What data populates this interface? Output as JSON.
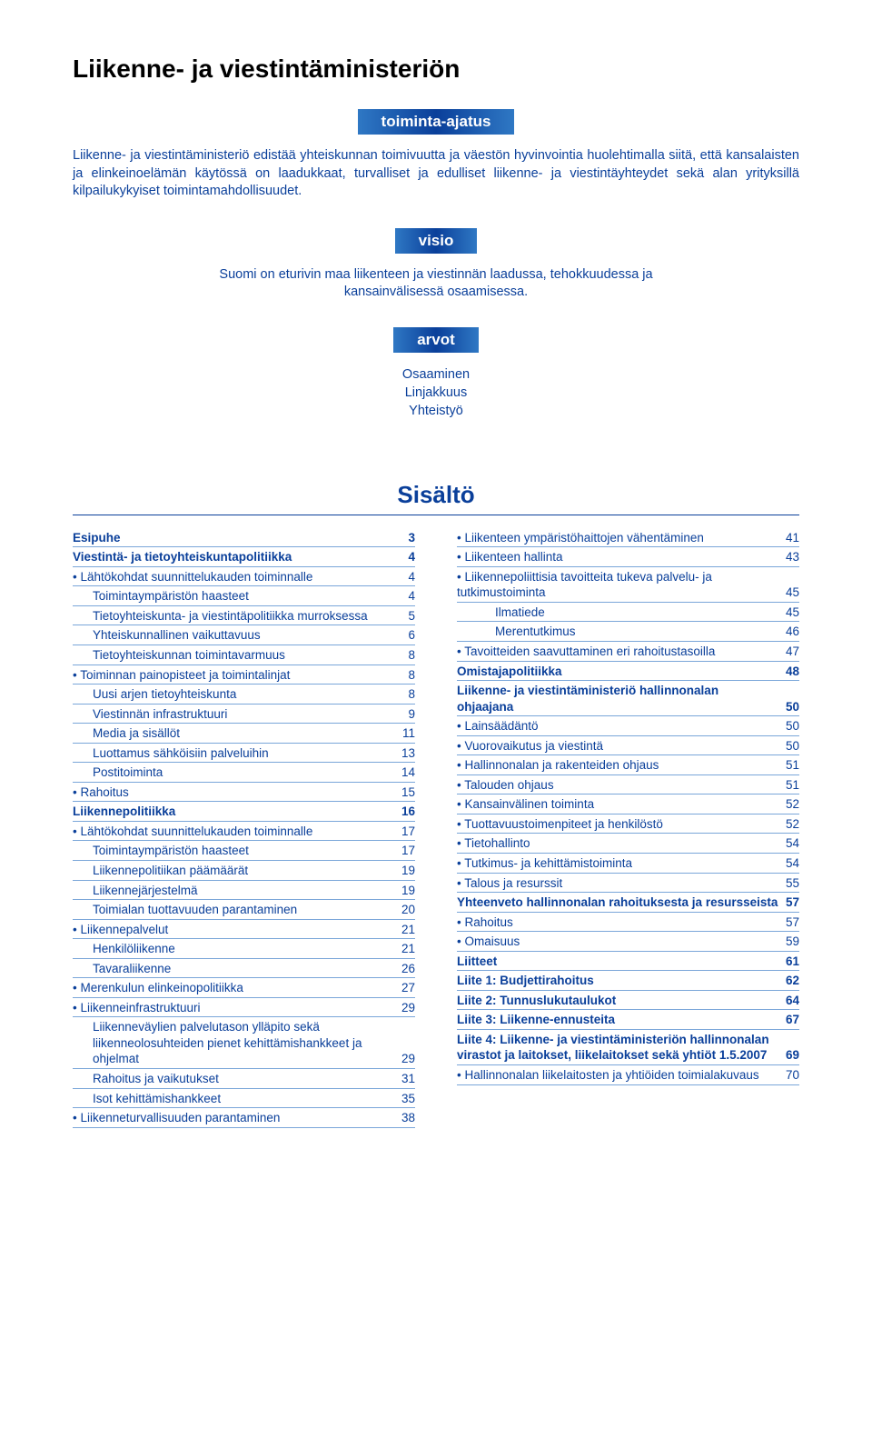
{
  "colors": {
    "accent": "#0a3f9a",
    "pill_gradient_edge": "#2f78c4",
    "pill_gradient_mid": "#0a3f9a",
    "rule": "#7aa6d9",
    "background": "#ffffff"
  },
  "typography": {
    "body_font": "Arial, Helvetica, sans-serif",
    "title_fontsize_pt": 21,
    "body_fontsize_pt": 11,
    "toc_fontsize_pt": 10,
    "pill_fontsize_pt": 13
  },
  "header": {
    "title": "Liikenne- ja viestintäministeriön"
  },
  "sections": {
    "toiminta_ajatus": {
      "label": "toiminta-ajatus",
      "text": "Liikenne- ja viestintäministeriö edistää yhteiskunnan toimivuutta ja väestön hyvinvointia huolehtimalla siitä, että kansalaisten ja elinkeinoelämän käytössä on laadukkaat, turvalliset ja edulliset liikenne- ja viestintäyhteydet sekä alan yrityksillä kilpailukykyiset toimintamahdollisuudet."
    },
    "visio": {
      "label": "visio",
      "text": "Suomi on eturivin maa liikenteen ja viestinnän laadussa, tehokkuudessa ja kansainvälisessä osaamisessa."
    },
    "arvot": {
      "label": "arvot",
      "items": [
        "Osaaminen",
        "Linjakkuus",
        "Yhteistyö"
      ]
    }
  },
  "toc": {
    "title": "Sisältö",
    "left": [
      {
        "label": "Esipuhe",
        "page": "3",
        "level": 0
      },
      {
        "label": "Viestintä- ja tietoyhteiskuntapolitiikka",
        "page": "4",
        "level": 0
      },
      {
        "label": "Lähtökohdat suunnittelukauden toiminnalle",
        "page": "4",
        "level": 1
      },
      {
        "label": "Toimintaympäristön haasteet",
        "page": "4",
        "level": 2
      },
      {
        "label": "Tietoyhteiskunta- ja viestintäpolitiikka murroksessa",
        "page": "5",
        "level": 2
      },
      {
        "label": "Yhteiskunnallinen vaikuttavuus",
        "page": "6",
        "level": 2
      },
      {
        "label": "Tietoyhteiskunnan toimintavarmuus",
        "page": "8",
        "level": 2
      },
      {
        "label": "Toiminnan painopisteet ja toimintalinjat",
        "page": "8",
        "level": 1
      },
      {
        "label": "Uusi arjen tietoyhteiskunta",
        "page": "8",
        "level": 2
      },
      {
        "label": "Viestinnän infrastruktuuri",
        "page": "9",
        "level": 2
      },
      {
        "label": "Media ja sisällöt",
        "page": "11",
        "level": 2
      },
      {
        "label": "Luottamus sähköisiin palveluihin",
        "page": "13",
        "level": 2
      },
      {
        "label": "Postitoiminta",
        "page": "14",
        "level": 2
      },
      {
        "label": "Rahoitus",
        "page": "15",
        "level": 1
      },
      {
        "label": "Liikennepolitiikka",
        "page": "16",
        "level": 0
      },
      {
        "label": "Lähtökohdat suunnittelukauden toiminnalle",
        "page": "17",
        "level": 1
      },
      {
        "label": "Toimintaympäristön haasteet",
        "page": "17",
        "level": 2
      },
      {
        "label": "Liikennepolitiikan päämäärät",
        "page": "19",
        "level": 2
      },
      {
        "label": "Liikennejärjestelmä",
        "page": "19",
        "level": 2
      },
      {
        "label": "Toimialan tuottavuuden parantaminen",
        "page": "20",
        "level": 2
      },
      {
        "label": "Liikennepalvelut",
        "page": "21",
        "level": 1
      },
      {
        "label": "Henkilöliikenne",
        "page": "21",
        "level": 2
      },
      {
        "label": "Tavaraliikenne",
        "page": "26",
        "level": 2
      },
      {
        "label": "Merenkulun elinkeinopolitiikka",
        "page": "27",
        "level": 1
      },
      {
        "label": "Liikenneinfrastruktuuri",
        "page": "29",
        "level": 1
      },
      {
        "label": "Liikenneväylien palvelutason ylläpito sekä liikenneolosuhteiden pienet kehittämishankkeet ja ohjelmat",
        "page": "29",
        "level": 2
      },
      {
        "label": "Rahoitus ja vaikutukset",
        "page": "31",
        "level": 2
      },
      {
        "label": "Isot kehittämishankkeet",
        "page": "35",
        "level": 2
      },
      {
        "label": "Liikenneturvallisuuden parantaminen",
        "page": "38",
        "level": 1
      }
    ],
    "right": [
      {
        "label": "Liikenteen ympäristöhaittojen vähentäminen",
        "page": "41",
        "level": 1
      },
      {
        "label": "Liikenteen hallinta",
        "page": "43",
        "level": 1
      },
      {
        "label": "Liikennepoliittisia tavoitteita tukeva palvelu- ja tutkimustoiminta",
        "page": "45",
        "level": 1
      },
      {
        "label": "Ilmatiede",
        "page": "45",
        "level": 3
      },
      {
        "label": "Merentutkimus",
        "page": "46",
        "level": 3
      },
      {
        "label": "Tavoitteiden saavuttaminen eri rahoitustasoilla",
        "page": "47",
        "level": 1
      },
      {
        "label": "Omistajapolitiikka",
        "page": "48",
        "level": 0
      },
      {
        "label": "Liikenne- ja viestintäministeriö hallinnonalan ohjaajana",
        "page": "50",
        "level": 0
      },
      {
        "label": "Lainsäädäntö",
        "page": "50",
        "level": 1
      },
      {
        "label": "Vuorovaikutus ja viestintä",
        "page": "50",
        "level": 1
      },
      {
        "label": "Hallinnonalan ja rakenteiden ohjaus",
        "page": "51",
        "level": 1
      },
      {
        "label": "Talouden ohjaus",
        "page": "51",
        "level": 1
      },
      {
        "label": "Kansainvälinen toiminta",
        "page": "52",
        "level": 1
      },
      {
        "label": "Tuottavuustoimenpiteet ja henkilöstö",
        "page": "52",
        "level": 1
      },
      {
        "label": "Tietohallinto",
        "page": "54",
        "level": 1
      },
      {
        "label": "Tutkimus- ja kehittämistoiminta",
        "page": "54",
        "level": 1
      },
      {
        "label": "Talous ja resurssit",
        "page": "55",
        "level": 1
      },
      {
        "label": "Yhteenveto hallinnonalan rahoituksesta ja resursseista",
        "page": "57",
        "level": 0
      },
      {
        "label": "Rahoitus",
        "page": "57",
        "level": 1
      },
      {
        "label": "Omaisuus",
        "page": "59",
        "level": 1
      },
      {
        "label": "Liitteet",
        "page": "61",
        "level": 0
      },
      {
        "label": "Liite 1: Budjettirahoitus",
        "page": "62",
        "level": 0
      },
      {
        "label": "Liite 2: Tunnuslukutaulukot",
        "page": "64",
        "level": 0
      },
      {
        "label": "Liite 3: Liikenne-ennusteita",
        "page": "67",
        "level": 0
      },
      {
        "label": "Liite 4: Liikenne- ja viestintäministeriön hallinnonalan virastot ja laitokset, liikelaitokset sekä yhtiöt 1.5.2007",
        "page": "69",
        "level": 0
      },
      {
        "label": "Hallinnonalan liikelaitosten ja yhtiöiden toimialakuvaus",
        "page": "70",
        "level": 1
      }
    ]
  }
}
